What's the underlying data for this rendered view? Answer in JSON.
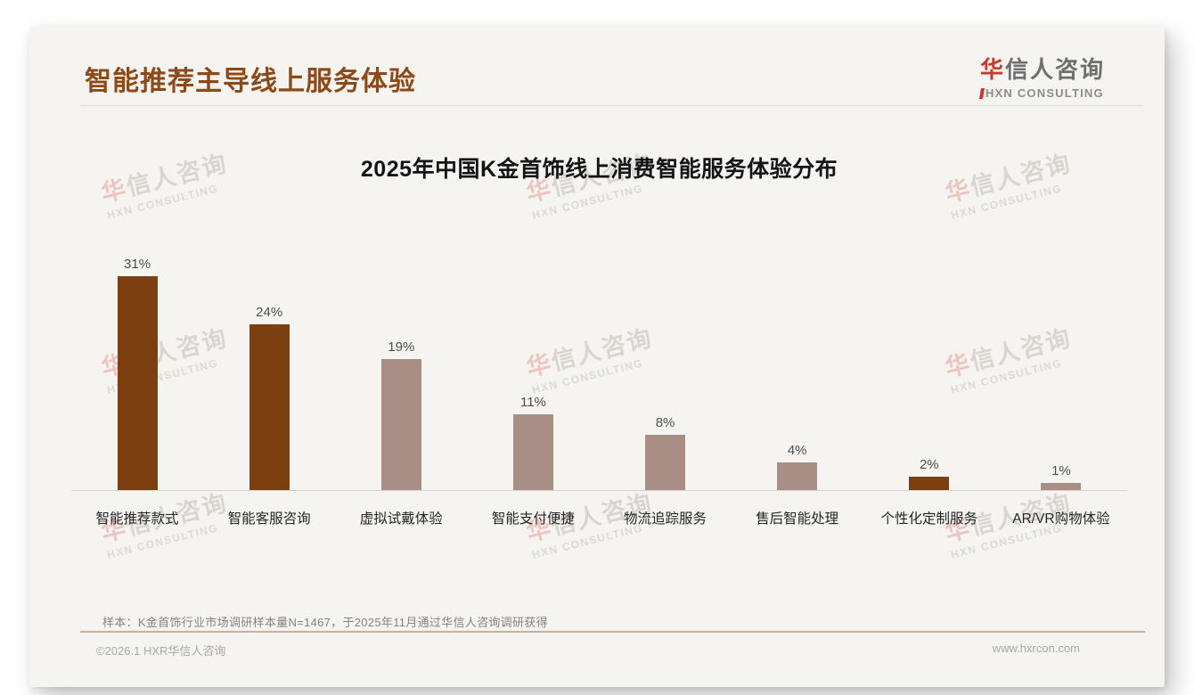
{
  "page": {
    "title": "智能推荐主导线上服务体验",
    "logo": {
      "zh_first": "华",
      "zh_rest": "信人咨询",
      "en": "HXN CONSULTING"
    },
    "watermark": {
      "zh_first": "华",
      "zh_rest": "信人咨询",
      "en": "HXN CONSULTING"
    },
    "footnote": "样本：K金首饰行业市场调研样本量N=1467，于2025年11月通过华信人咨询调研获得",
    "footer_left": "©2026.1 HXR华信人咨询",
    "footer_right": "www.hxrcon.com"
  },
  "colors": {
    "accent_dark": "#7B3F10",
    "accent_light": "#A98E85",
    "title_brown": "#8C4A18",
    "logo_red": "#C43C2B"
  },
  "chart_data": {
    "type": "bar",
    "title": "2025年中国K金首饰线上消费智能服务体验分布",
    "categories": [
      "智能推荐款式",
      "智能客服咨询",
      "虚拟试戴体验",
      "智能支付便捷",
      "物流追踪服务",
      "售后智能处理",
      "个性化定制服务",
      "AR/VR购物体验"
    ],
    "values": [
      31,
      24,
      19,
      11,
      8,
      4,
      2,
      1
    ],
    "value_labels": [
      "31%",
      "24%",
      "19%",
      "11%",
      "8%",
      "4%",
      "2%",
      "1%"
    ],
    "unit": "%",
    "bar_colors": [
      "#7B3F10",
      "#7B3F10",
      "#A98E85",
      "#A98E85",
      "#A98E85",
      "#A98E85",
      "#7B3F10",
      "#A98E85"
    ],
    "xlabel": "",
    "ylabel": "",
    "grid": false,
    "legend": false,
    "data_labels": "above-bars"
  }
}
